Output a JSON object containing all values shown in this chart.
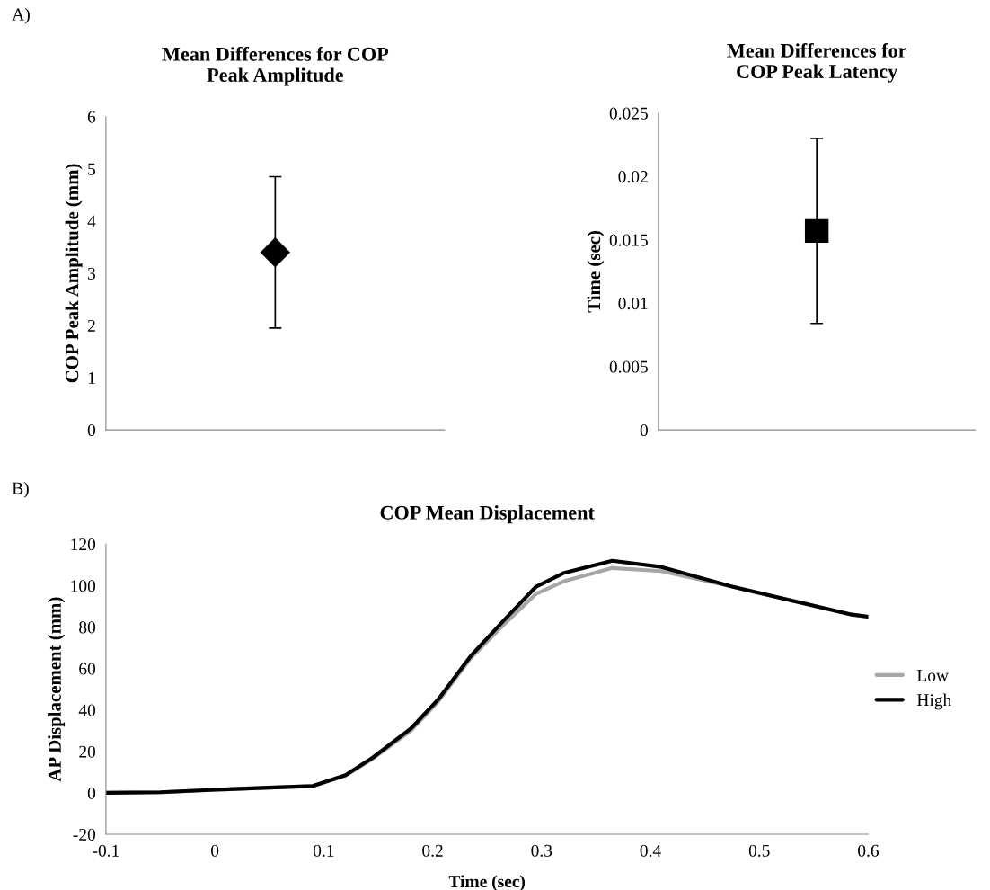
{
  "chart_data": [
    {
      "type": "scatter",
      "title": "Mean Differences for COP\nPeak Amplitude",
      "ylabel": "COP Peak Amplitude (mm)",
      "annotations": [
        "A)"
      ],
      "categories": [
        null
      ],
      "series": [
        {
          "color": "#000000",
          "values": [
            3.4
          ],
          "errors": [
            1.45
          ]
        }
      ],
      "marker": "diamond",
      "ylim": [
        0,
        6
      ],
      "yticks": [
        0,
        1,
        2,
        3,
        4,
        5,
        6
      ],
      "tick_labels": "y",
      "grid": false,
      "legend": false
    },
    {
      "type": "scatter",
      "title": "Mean Differences for\nCOP Peak Latency",
      "ylabel": "Time (sec)",
      "categories": [
        null
      ],
      "series": [
        {
          "color": "#000000",
          "values": [
            0.0157
          ],
          "errors": [
            0.0073
          ]
        }
      ],
      "marker": "square",
      "ylim": [
        0,
        0.025
      ],
      "yticks": [
        0,
        0.005,
        0.01,
        0.015,
        0.02,
        0.025
      ],
      "tick_labels": "y",
      "grid": false,
      "legend": false
    },
    {
      "type": "line",
      "title": "COP Mean Displacement",
      "xlabel": "Time (sec)",
      "ylabel": "AP Displacement (mm)",
      "annotations": [
        "B)"
      ],
      "x": [
        -0.1,
        -0.05,
        0,
        0.05,
        0.09,
        0.12,
        0.145,
        0.18,
        0.205,
        0.235,
        0.265,
        0.295,
        0.32,
        0.365,
        0.41,
        0.475,
        0.585,
        0.6
      ],
      "series": [
        {
          "name": "Low",
          "color": "#a6a6a6",
          "values": [
            0,
            0.3,
            1.5,
            2.5,
            3.3,
            8.3,
            16.5,
            30,
            44,
            65,
            81,
            96,
            102,
            108.5,
            107,
            99.5,
            86,
            85
          ]
        },
        {
          "name": "High",
          "color": "#000000",
          "values": [
            0,
            0.3,
            1.5,
            2.5,
            3.3,
            8.5,
            17,
            31,
            45,
            66,
            83,
            99.5,
            106,
            112,
            109,
            99.5,
            86,
            85
          ]
        }
      ],
      "xlim": [
        -0.1,
        0.6
      ],
      "xticks": [
        -0.1,
        0,
        0.1,
        0.2,
        0.3,
        0.4,
        0.5,
        0.6
      ],
      "ylim": [
        -20,
        120
      ],
      "yticks": [
        -20,
        0,
        20,
        40,
        60,
        80,
        100,
        120
      ],
      "marker": "none",
      "line_style": "solid",
      "grid": false,
      "legend": "right"
    }
  ]
}
